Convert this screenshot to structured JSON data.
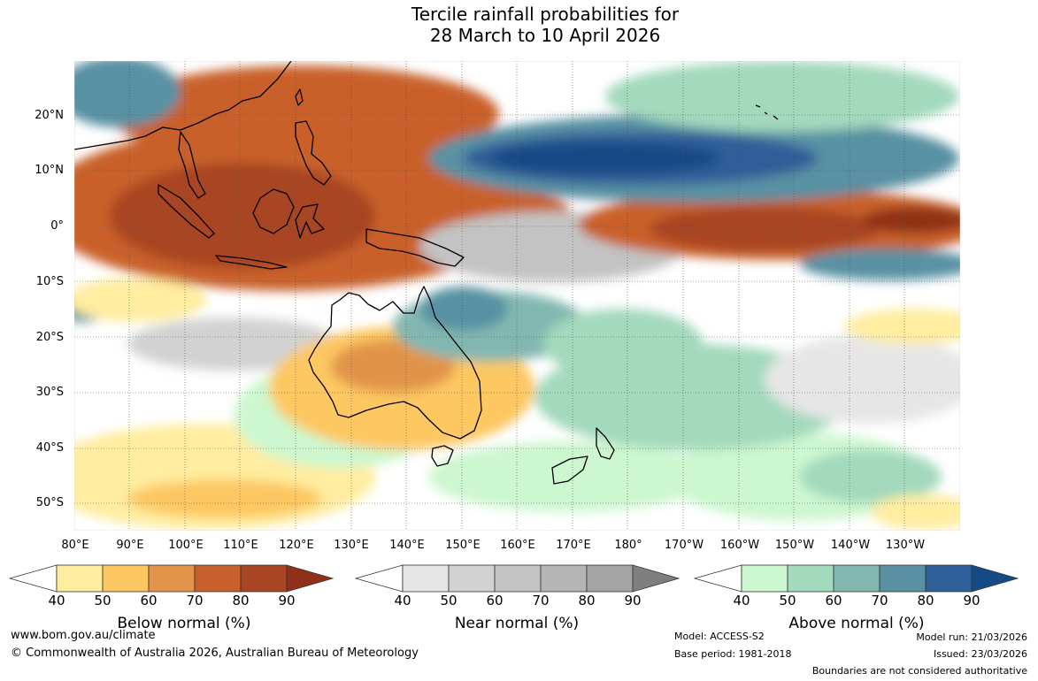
{
  "title": {
    "line1": "Tercile rainfall probabilities for",
    "line2": "28 March to 10 April 2026"
  },
  "map": {
    "lat_labels": [
      "20°N",
      "10°N",
      "0°",
      "10°S",
      "20°S",
      "30°S",
      "40°S",
      "50°S"
    ],
    "lon_labels": [
      "80°E",
      "90°E",
      "100°E",
      "110°E",
      "120°E",
      "130°E",
      "140°E",
      "150°E",
      "160°E",
      "170°E",
      "180°",
      "170°W",
      "160°W",
      "150°W",
      "140°W",
      "130°W"
    ]
  },
  "legends": {
    "ticks": [
      "40",
      "50",
      "60",
      "70",
      "80",
      "90"
    ],
    "below": {
      "title": "Below normal (%)",
      "colors": [
        "#ffffff",
        "#ffeda0",
        "#fdc762",
        "#e1944a",
        "#c9602b",
        "#a84522",
        "#8f3118"
      ]
    },
    "near": {
      "title": "Near normal (%)",
      "colors": [
        "#ffffff",
        "#e6e6e6",
        "#d2d2d2",
        "#c3c3c3",
        "#b5b5b5",
        "#a4a4a4",
        "#7f7f7f"
      ]
    },
    "above": {
      "title": "Above normal (%)",
      "colors": [
        "#ffffff",
        "#ccf7cf",
        "#a3d9bd",
        "#82b7b0",
        "#5991a3",
        "#2f5f98",
        "#164a86"
      ]
    }
  },
  "footer": {
    "website": "www.bom.gov.au/climate",
    "copyright": "© Commonwealth of Australia 2026, Australian Bureau of Meteorology",
    "model": "Model: ACCESS-S2",
    "base_period": "Base period: 1981-2018",
    "model_run": "Model run: 21/03/2026",
    "issued": "Issued: 23/03/2026",
    "disclaimer": "Boundaries are not considered authoritative"
  }
}
